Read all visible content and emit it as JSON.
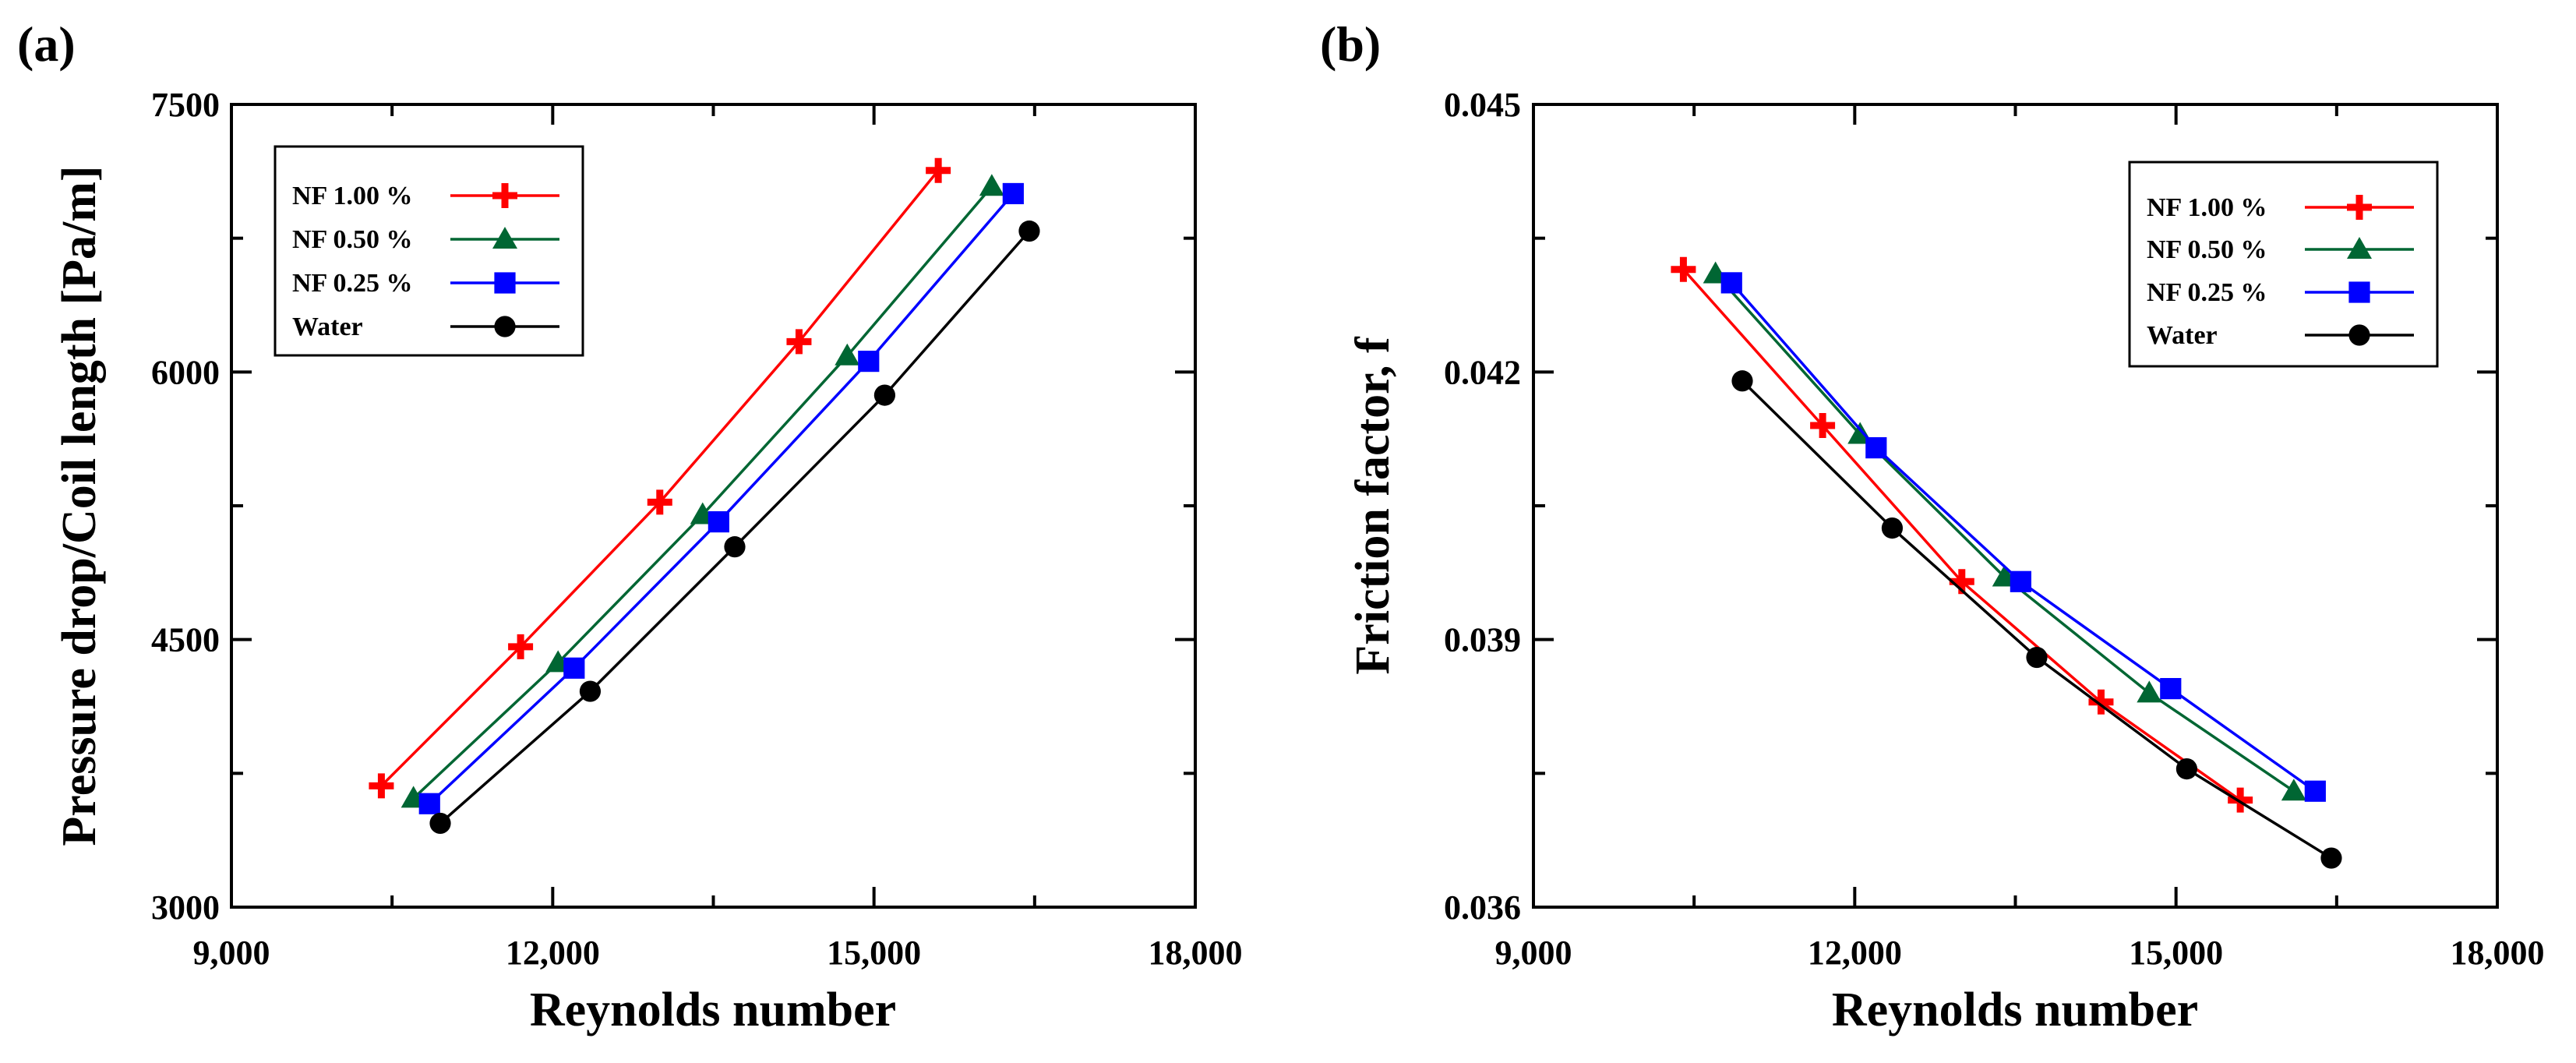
{
  "chart_data": [
    {
      "panel": "(a)",
      "type": "line",
      "xlabel": "Reynolds number",
      "ylabel": "Pressure drop/Coil length [Pa/m]",
      "xlim": [
        9000,
        18000
      ],
      "ylim": [
        3000,
        7500
      ],
      "xticks": [
        9000,
        12000,
        15000,
        18000
      ],
      "yticks": [
        3000,
        4500,
        6000,
        7500
      ],
      "xtick_labels": [
        "9,000",
        "12,000",
        "15,000",
        "18,000"
      ],
      "ytick_labels": [
        "3000",
        "4500",
        "6000",
        "7500"
      ],
      "legend_position": "top-left",
      "series": [
        {
          "name": "NF 1.00 %",
          "color": "#ff0000",
          "marker": "plus",
          "x": [
            10400,
            11700,
            13000,
            14300,
            15600
          ],
          "y": [
            3680,
            4460,
            5270,
            6170,
            7130
          ]
        },
        {
          "name": "NF 0.50 %",
          "color": "#006633",
          "marker": "triangle",
          "x": [
            10700,
            12050,
            13400,
            14750,
            16100
          ],
          "y": [
            3610,
            4370,
            5200,
            6090,
            7040
          ]
        },
        {
          "name": "NF 0.25 %",
          "color": "#0000ff",
          "marker": "square",
          "x": [
            10850,
            12200,
            13550,
            14950,
            16300
          ],
          "y": [
            3580,
            4340,
            5160,
            6060,
            7000
          ]
        },
        {
          "name": "Water",
          "color": "#000000",
          "marker": "circle",
          "x": [
            10950,
            12350,
            13700,
            15100,
            16450
          ],
          "y": [
            3470,
            4210,
            5020,
            5870,
            6790
          ]
        }
      ]
    },
    {
      "panel": "(b)",
      "type": "line",
      "xlabel": "Reynolds number",
      "ylabel": "Friction factor, f",
      "xlim": [
        9000,
        18000
      ],
      "ylim": [
        0.036,
        0.045
      ],
      "xticks": [
        9000,
        12000,
        15000,
        18000
      ],
      "yticks": [
        0.036,
        0.039,
        0.042,
        0.045
      ],
      "xtick_labels": [
        "9,000",
        "12,000",
        "15,000",
        "18,000"
      ],
      "ytick_labels": [
        "0.036",
        "0.039",
        "0.042",
        "0.045"
      ],
      "legend_position": "top-right",
      "series": [
        {
          "name": "NF 1.00 %",
          "color": "#ff0000",
          "marker": "plus",
          "x": [
            10400,
            11700,
            13000,
            14300,
            15600
          ],
          "y": [
            0.04315,
            0.0414,
            0.03965,
            0.0383,
            0.0372
          ]
        },
        {
          "name": "NF 0.50 %",
          "color": "#006633",
          "marker": "triangle",
          "x": [
            10700,
            12050,
            13400,
            14750,
            16100
          ],
          "y": [
            0.0431,
            0.0413,
            0.0397,
            0.0384,
            0.0373
          ]
        },
        {
          "name": "NF 0.25 %",
          "color": "#0000ff",
          "marker": "square",
          "x": [
            10850,
            12200,
            13550,
            14950,
            16300
          ],
          "y": [
            0.043,
            0.04115,
            0.03965,
            0.03845,
            0.0373
          ]
        },
        {
          "name": "Water",
          "color": "#000000",
          "marker": "circle",
          "x": [
            10950,
            12350,
            13700,
            15100,
            16450
          ],
          "y": [
            0.0419,
            0.04025,
            0.0388,
            0.03755,
            0.03655
          ]
        }
      ]
    }
  ]
}
